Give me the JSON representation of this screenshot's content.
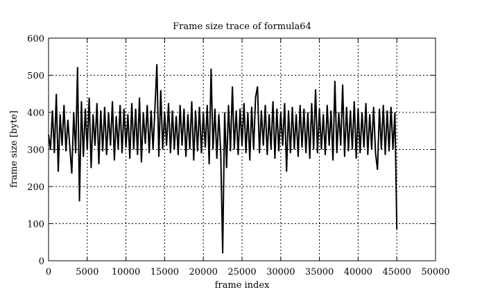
{
  "chart_data": {
    "type": "line",
    "title": "Frame size trace of formula64",
    "xlabel": "frame index",
    "ylabel": "frame size [byte]",
    "xlim": [
      0,
      50000
    ],
    "ylim": [
      0,
      600
    ],
    "xticks": [
      0,
      5000,
      10000,
      15000,
      20000,
      25000,
      30000,
      35000,
      40000,
      45000,
      50000
    ],
    "yticks": [
      0,
      100,
      200,
      300,
      400,
      500,
      600
    ],
    "grid": true,
    "line_color": "#000000",
    "x_step": 250,
    "series": [
      {
        "values": [
          340,
          300,
          405,
          290,
          450,
          240,
          395,
          310,
          420,
          295,
          380,
          305,
          235,
          400,
          290,
          522,
          160,
          430,
          280,
          410,
          300,
          440,
          250,
          395,
          310,
          425,
          260,
          405,
          295,
          415,
          285,
          400,
          310,
          430,
          270,
          390,
          300,
          420,
          290,
          410,
          305,
          395,
          275,
          425,
          300,
          410,
          285,
          440,
          265,
          400,
          315,
          420,
          290,
          405,
          300,
          415,
          530,
          280,
          460,
          300,
          400,
          310,
          425,
          290,
          405,
          300,
          390,
          285,
          420,
          310,
          410,
          280,
          395,
          300,
          430,
          270,
          405,
          295,
          415,
          290,
          400,
          305,
          420,
          260,
          518,
          300,
          410,
          275,
          395,
          290,
          20,
          400,
          250,
          420,
          295,
          470,
          300,
          405,
          285,
          410,
          310,
          425,
          290,
          400,
          270,
          415,
          300,
          440,
          470,
          290,
          405,
          310,
          420,
          285,
          395,
          300,
          430,
          275,
          410,
          295,
          400,
          310,
          425,
          240,
          405,
          290,
          415,
          300,
          395,
          280,
          420,
          305,
          410,
          290,
          400,
          275,
          425,
          300,
          462,
          290,
          410,
          300,
          395,
          285,
          420,
          310,
          405,
          270,
          485,
          290,
          400,
          310,
          475,
          280,
          415,
          295,
          405,
          300,
          430,
          275,
          410,
          290,
          400,
          305,
          425,
          285,
          395,
          300,
          415,
          290,
          245,
          410,
          300,
          420,
          285,
          405,
          295,
          415,
          300,
          400,
          85
        ]
      }
    ]
  }
}
